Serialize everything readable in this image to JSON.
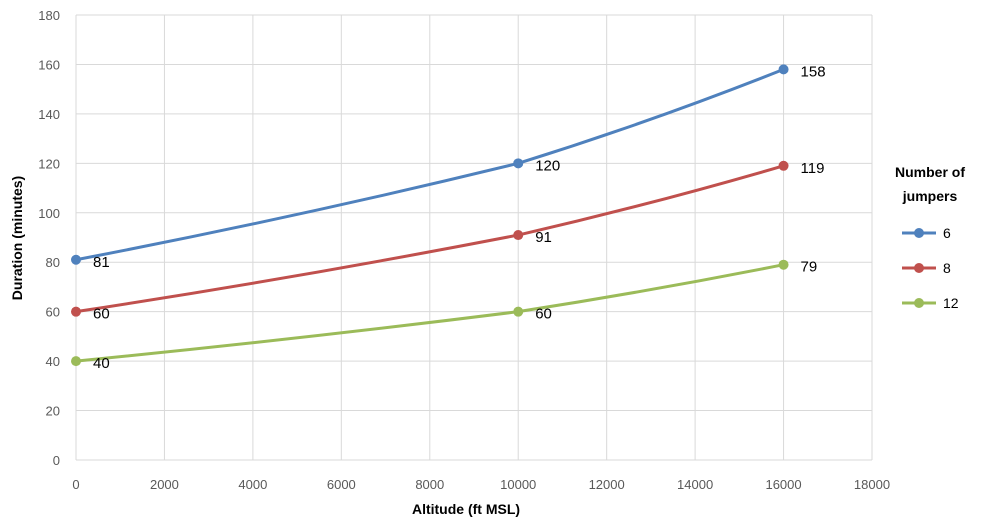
{
  "chart_data": {
    "type": "line",
    "xlabel": "Altitude (ft MSL)",
    "ylabel": "Duration (minutes)",
    "xlim": [
      0,
      18000
    ],
    "ylim": [
      0,
      180
    ],
    "xticks": [
      0,
      2000,
      4000,
      6000,
      8000,
      10000,
      12000,
      14000,
      16000,
      18000
    ],
    "yticks": [
      0,
      20,
      40,
      60,
      80,
      100,
      120,
      140,
      160,
      180
    ],
    "grid": true,
    "legend": {
      "title_lines": [
        "Number of",
        "jumpers"
      ],
      "placement": "right"
    },
    "x": [
      0,
      10000,
      16000
    ],
    "series": [
      {
        "name": "6",
        "color": "#4F81BD",
        "values": [
          81,
          120,
          158
        ]
      },
      {
        "name": "8",
        "color": "#C0504D",
        "values": [
          60,
          91,
          119
        ]
      },
      {
        "name": "12",
        "color": "#9BBB59",
        "values": [
          40,
          60,
          79
        ]
      }
    ]
  }
}
